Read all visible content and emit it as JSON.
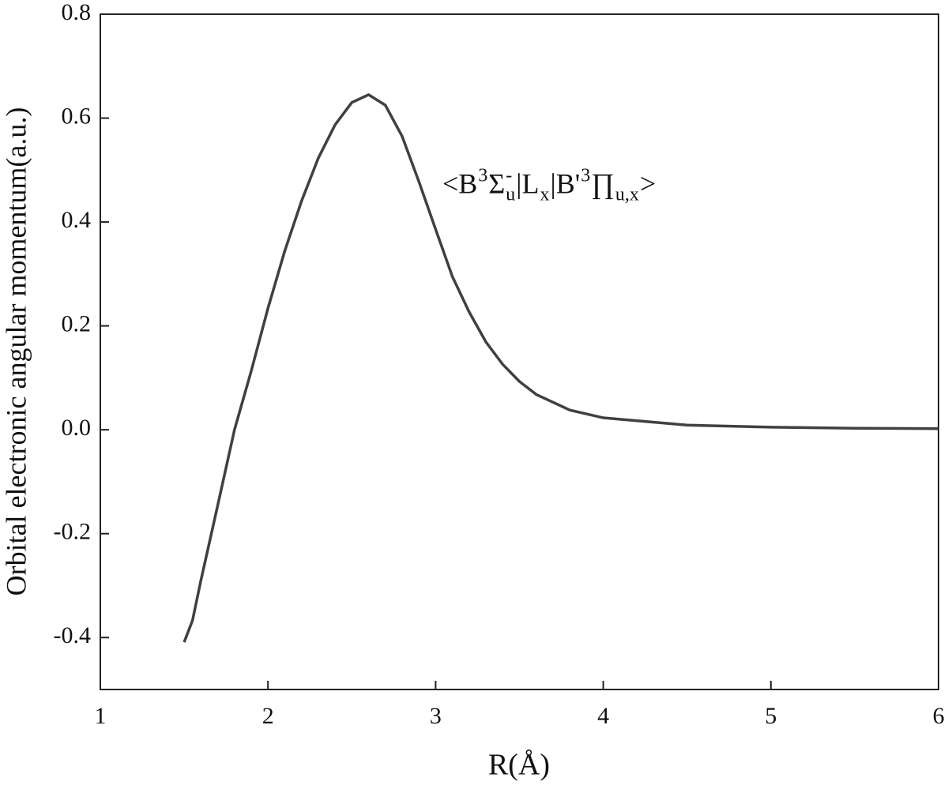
{
  "chart_data": {
    "type": "line",
    "x_label": "R(Å)",
    "y_label": "Orbital electronic angular momentum(a.u.)",
    "annotation": [
      {
        "text": "<B",
        "pos": "base"
      },
      {
        "text": "3",
        "pos": "sup"
      },
      {
        "text": "Σ",
        "pos": "base"
      },
      {
        "text": "-",
        "pos": "sup"
      },
      {
        "text": "u",
        "pos": "sub"
      },
      {
        "text": "|L",
        "pos": "base"
      },
      {
        "text": "x",
        "pos": "sub"
      },
      {
        "text": "|B'",
        "pos": "base"
      },
      {
        "text": "3",
        "pos": "sup"
      },
      {
        "text": "∏",
        "pos": "base"
      },
      {
        "text": "u,x",
        "pos": "sub"
      },
      {
        "text": ">",
        "pos": "base"
      }
    ],
    "x": [
      1.5,
      1.55,
      1.6,
      1.7,
      1.8,
      1.9,
      2.0,
      2.1,
      2.2,
      2.3,
      2.4,
      2.5,
      2.6,
      2.7,
      2.8,
      2.9,
      3.0,
      3.1,
      3.2,
      3.3,
      3.4,
      3.5,
      3.6,
      3.8,
      4.0,
      4.5,
      5.0,
      5.5,
      6.0
    ],
    "values": [
      -0.409,
      -0.367,
      -0.29,
      -0.146,
      0.0,
      0.113,
      0.234,
      0.344,
      0.44,
      0.523,
      0.587,
      0.63,
      0.645,
      0.625,
      0.565,
      0.478,
      0.386,
      0.295,
      0.227,
      0.169,
      0.126,
      0.093,
      0.068,
      0.038,
      0.023,
      0.009,
      0.005,
      0.003,
      0.002
    ],
    "color": "#404040",
    "xlim": [
      1,
      6
    ],
    "xticks": [
      1,
      2,
      3,
      4,
      5,
      6
    ],
    "ylim": [
      -0.5,
      0.8
    ],
    "yticks": [
      -0.4,
      -0.2,
      {
        "value": 0,
        "label": "0.0"
      },
      0.2,
      0.4,
      0.6,
      0.8
    ],
    "grid": false
  }
}
